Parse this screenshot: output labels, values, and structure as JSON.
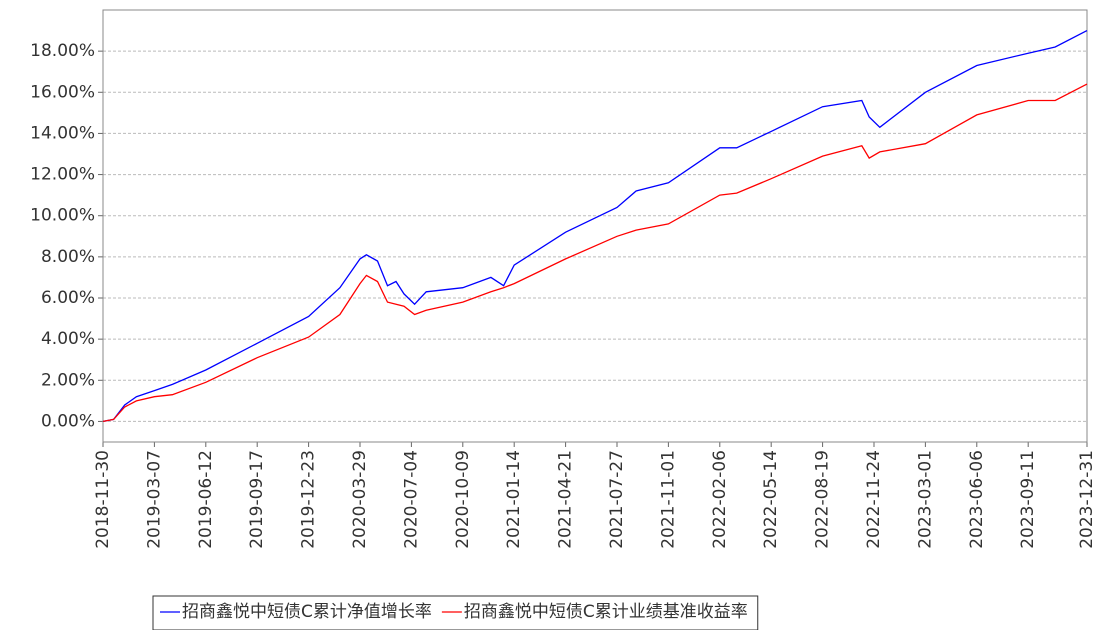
{
  "chart_data": {
    "type": "line",
    "x": [
      "2018-11-30",
      "2018-12-20",
      "2019-01-10",
      "2019-02-01",
      "2019-03-07",
      "2019-04-10",
      "2019-06-12",
      "2019-09-17",
      "2019-12-23",
      "2020-02-20",
      "2020-03-29",
      "2020-04-10",
      "2020-05-01",
      "2020-05-20",
      "2020-06-05",
      "2020-06-20",
      "2020-07-10",
      "2020-08-01",
      "2020-10-09",
      "2020-12-01",
      "2020-12-25",
      "2021-01-14",
      "2021-04-21",
      "2021-07-27",
      "2021-09-01",
      "2021-11-01",
      "2022-02-06",
      "2022-03-10",
      "2022-05-14",
      "2022-08-19",
      "2022-11-01",
      "2022-11-15",
      "2022-12-05",
      "2023-03-01",
      "2023-06-06",
      "2023-09-11",
      "2023-11-01",
      "2023-12-31"
    ],
    "series": [
      {
        "name": "招商鑫悦中短债C累计净值增长率",
        "color": "#0000ff",
        "values": [
          0,
          0.1,
          0.8,
          1.2,
          1.5,
          1.8,
          2.5,
          3.8,
          5.1,
          6.5,
          7.9,
          8.1,
          7.8,
          6.6,
          6.8,
          6.2,
          5.7,
          6.3,
          6.5,
          7.0,
          6.6,
          7.6,
          9.2,
          10.4,
          11.2,
          11.6,
          13.3,
          13.3,
          14.1,
          15.3,
          15.6,
          14.8,
          14.3,
          16.0,
          17.3,
          17.9,
          18.2,
          19.0
        ]
      },
      {
        "name": "招商鑫悦中短债C累计业绩基准收益率",
        "color": "#ff0000",
        "values": [
          0,
          0.1,
          0.7,
          1.0,
          1.2,
          1.3,
          1.9,
          3.1,
          4.1,
          5.2,
          6.7,
          7.1,
          6.8,
          5.8,
          5.7,
          5.6,
          5.2,
          5.4,
          5.8,
          6.3,
          6.5,
          6.7,
          7.9,
          9.0,
          9.3,
          9.6,
          11.0,
          11.1,
          11.8,
          12.9,
          13.4,
          12.8,
          13.1,
          13.5,
          14.9,
          15.6,
          15.6,
          16.4
        ]
      }
    ],
    "xlim": [
      "2018-11-30",
      "2023-12-31"
    ],
    "xticks": [
      "2018-11-30",
      "2019-03-07",
      "2019-06-12",
      "2019-09-17",
      "2019-12-23",
      "2020-03-29",
      "2020-07-04",
      "2020-10-09",
      "2021-01-14",
      "2021-04-21",
      "2021-07-27",
      "2021-11-01",
      "2022-02-06",
      "2022-05-14",
      "2022-08-19",
      "2022-11-24",
      "2023-03-01",
      "2023-06-06",
      "2023-09-11",
      "2023-12-31"
    ],
    "ylim": [
      -1,
      20
    ],
    "yticks": [
      {
        "value": 0,
        "label": "0.00%"
      },
      {
        "value": 2,
        "label": "2.00%"
      },
      {
        "value": 4,
        "label": "4.00%"
      },
      {
        "value": 6,
        "label": "6.00%"
      },
      {
        "value": 8,
        "label": "8.00%"
      },
      {
        "value": 10,
        "label": "10.00%"
      },
      {
        "value": 12,
        "label": "12.00%"
      },
      {
        "value": 14,
        "label": "14.00%"
      },
      {
        "value": 16,
        "label": "16.00%"
      },
      {
        "value": 18,
        "label": "18.00%"
      }
    ],
    "grid": true
  }
}
